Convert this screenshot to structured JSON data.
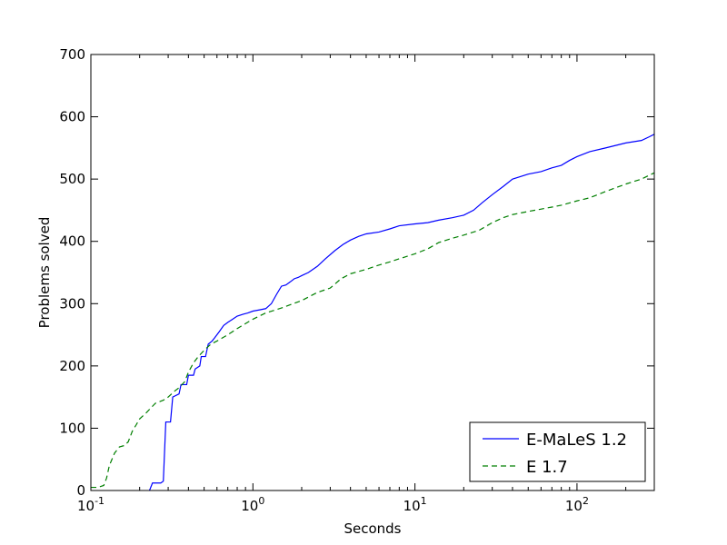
{
  "chart_data": {
    "type": "line",
    "title": "",
    "xlabel": "Seconds",
    "ylabel": "Problems solved",
    "x_scale": "log",
    "xlim": [
      0.1,
      300
    ],
    "ylim": [
      0,
      700
    ],
    "grid": false,
    "legend_position": "lower-right",
    "x_ticks": [
      0.1,
      1,
      10,
      100
    ],
    "x_tick_labels": [
      {
        "base": "10",
        "exp": "-1"
      },
      {
        "base": "10",
        "exp": "0"
      },
      {
        "base": "10",
        "exp": "1"
      },
      {
        "base": "10",
        "exp": "2"
      }
    ],
    "y_ticks": [
      0,
      100,
      200,
      300,
      400,
      500,
      600,
      700
    ],
    "y_tick_labels": [
      "0",
      "100",
      "200",
      "300",
      "400",
      "500",
      "600",
      "700"
    ],
    "series": [
      {
        "name": "E-MaLeS 1.2",
        "color": "#0000ff",
        "dash": "solid",
        "x": [
          0.23,
          0.24,
          0.27,
          0.28,
          0.29,
          0.31,
          0.32,
          0.35,
          0.36,
          0.39,
          0.4,
          0.43,
          0.44,
          0.47,
          0.48,
          0.51,
          0.53,
          0.56,
          0.58,
          0.62,
          0.66,
          0.7,
          0.75,
          0.8,
          0.87,
          0.93,
          1.0,
          1.1,
          1.2,
          1.3,
          1.4,
          1.5,
          1.6,
          1.7,
          1.8,
          1.9,
          2.0,
          2.2,
          2.5,
          2.8,
          3.2,
          3.6,
          4.0,
          4.5,
          5.0,
          6.0,
          7.0,
          8.0,
          10.0,
          12.0,
          14.0,
          17.0,
          20.0,
          23.0,
          26.0,
          30.0,
          35.0,
          40.0,
          50.0,
          60.0,
          70.0,
          80.0,
          90.0,
          100.0,
          120.0,
          150.0,
          200.0,
          250.0,
          280.0,
          300.0
        ],
        "y": [
          0,
          12,
          12,
          15,
          110,
          110,
          150,
          155,
          170,
          170,
          185,
          185,
          195,
          200,
          215,
          215,
          235,
          240,
          245,
          255,
          265,
          270,
          275,
          280,
          283,
          285,
          288,
          290,
          292,
          300,
          315,
          328,
          330,
          335,
          340,
          342,
          345,
          350,
          360,
          372,
          385,
          395,
          402,
          408,
          412,
          415,
          420,
          425,
          428,
          430,
          434,
          438,
          442,
          450,
          462,
          475,
          488,
          500,
          508,
          512,
          518,
          522,
          530,
          536,
          544,
          550,
          558,
          562,
          568,
          572
        ]
      },
      {
        "name": "E 1.7",
        "color": "#007f00",
        "dash": "dashed",
        "x": [
          0.1,
          0.11,
          0.12,
          0.125,
          0.13,
          0.14,
          0.15,
          0.16,
          0.17,
          0.18,
          0.19,
          0.2,
          0.22,
          0.25,
          0.28,
          0.3,
          0.33,
          0.35,
          0.38,
          0.4,
          0.43,
          0.46,
          0.5,
          0.55,
          0.6,
          0.7,
          0.8,
          0.9,
          1.0,
          1.2,
          1.5,
          2.0,
          2.5,
          3.0,
          3.5,
          4.0,
          5.0,
          6.0,
          7.0,
          8.0,
          10.0,
          12.0,
          14.0,
          17.0,
          20.0,
          25.0,
          30.0,
          35.0,
          40.0,
          50.0,
          70.0,
          80.0,
          100.0,
          120.0,
          150.0,
          200.0,
          250.0,
          300.0
        ],
        "y": [
          5,
          5,
          8,
          20,
          40,
          60,
          70,
          72,
          78,
          95,
          105,
          115,
          125,
          140,
          145,
          150,
          160,
          165,
          175,
          190,
          205,
          215,
          225,
          235,
          240,
          250,
          260,
          268,
          275,
          285,
          293,
          305,
          318,
          325,
          340,
          348,
          355,
          362,
          367,
          372,
          380,
          388,
          398,
          405,
          410,
          418,
          430,
          438,
          443,
          448,
          455,
          458,
          465,
          470,
          480,
          492,
          500,
          510
        ]
      }
    ]
  }
}
